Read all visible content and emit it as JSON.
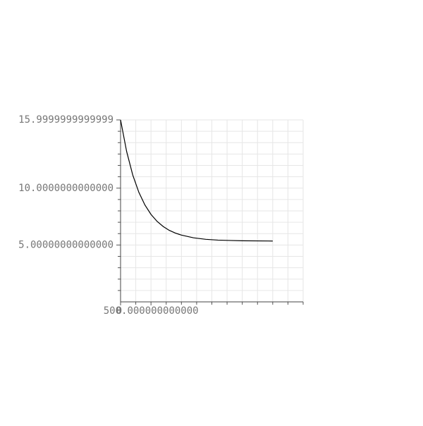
{
  "chart_data": {
    "type": "line",
    "x": [
      0,
      100,
      200,
      300,
      400,
      500,
      600,
      700,
      800,
      900,
      1000,
      1200,
      1400,
      1600,
      1800,
      2000,
      2500
    ],
    "series": [
      {
        "color": "#000000",
        "values": [
          16,
          13.22,
          11.16,
          9.64,
          8.52,
          7.69,
          7.08,
          6.63,
          6.29,
          6.05,
          5.87,
          5.63,
          5.5,
          5.43,
          5.4,
          5.37,
          5.35
        ]
      }
    ],
    "xlim": [
      0,
      3000
    ],
    "xticks": [
      0,
      {
        "value": 500,
        "label": "500.000000000000"
      }
    ],
    "x_minor_ticks": [
      250,
      750,
      1000,
      1250,
      1500,
      1750,
      2000,
      2250,
      2500,
      2750,
      3000
    ],
    "ylim": [
      0,
      15.9999999999999
    ],
    "yticks": [
      {
        "value": 15.9999999999999,
        "label": "15.9999999999999"
      },
      {
        "value": 10,
        "label": "10.0000000000000"
      },
      {
        "value": 5,
        "label": "5.00000000000000"
      }
    ],
    "y_minor_ticks": [
      1,
      2,
      3,
      4,
      6,
      7,
      8,
      9,
      11,
      12,
      13,
      14,
      15
    ],
    "grid": true
  }
}
